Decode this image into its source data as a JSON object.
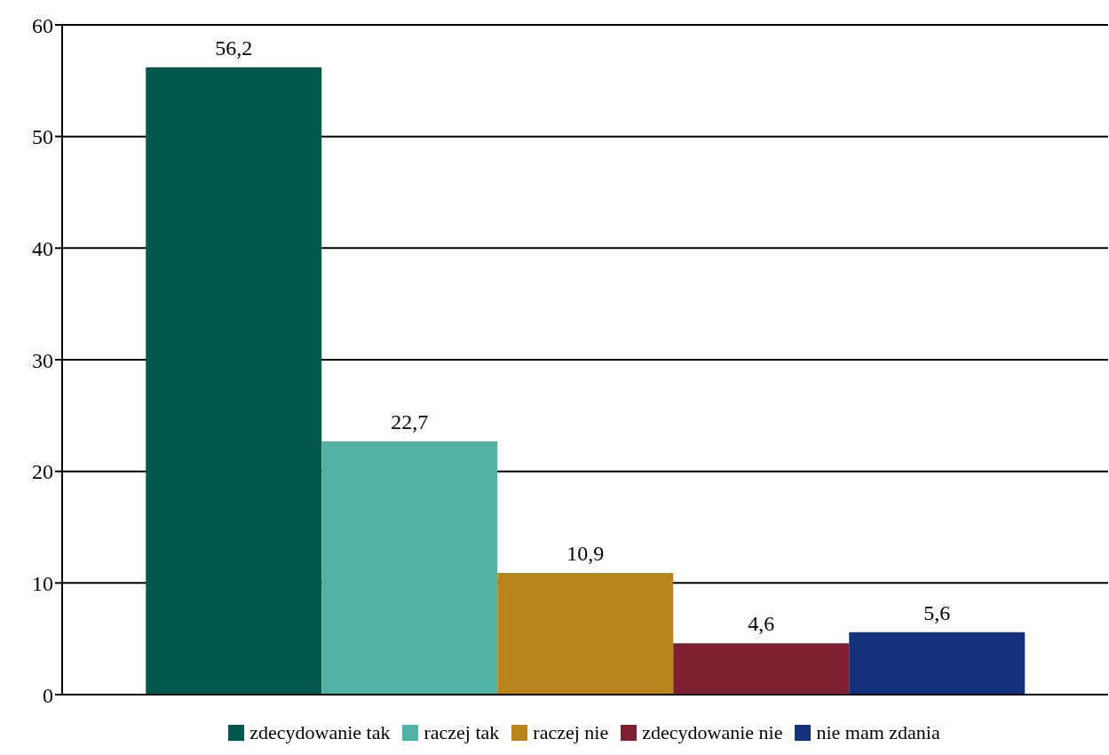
{
  "chart_data": {
    "type": "bar",
    "categories": [
      null
    ],
    "series": [
      {
        "name": "zdecydowanie tak",
        "color": "#02584b",
        "values": [
          56.2
        ],
        "value_labels": [
          "56,2"
        ]
      },
      {
        "name": "raczej tak",
        "color": "#52b3a5",
        "values": [
          22.7
        ],
        "value_labels": [
          "22,7"
        ]
      },
      {
        "name": "raczej nie",
        "color": "#b8841e",
        "values": [
          10.9
        ],
        "value_labels": [
          "10,9"
        ]
      },
      {
        "name": "zdecydowanie nie",
        "color": "#7d2032",
        "values": [
          4.6
        ],
        "value_labels": [
          "4,6"
        ]
      },
      {
        "name": "nie mam zdania",
        "color": "#15317a",
        "values": [
          5.6
        ],
        "value_labels": [
          "5,6"
        ]
      }
    ],
    "ylim": [
      0,
      60
    ],
    "yticks": [
      0,
      10,
      20,
      30,
      40,
      50,
      60
    ],
    "grid": "y",
    "legend": "bottom"
  }
}
